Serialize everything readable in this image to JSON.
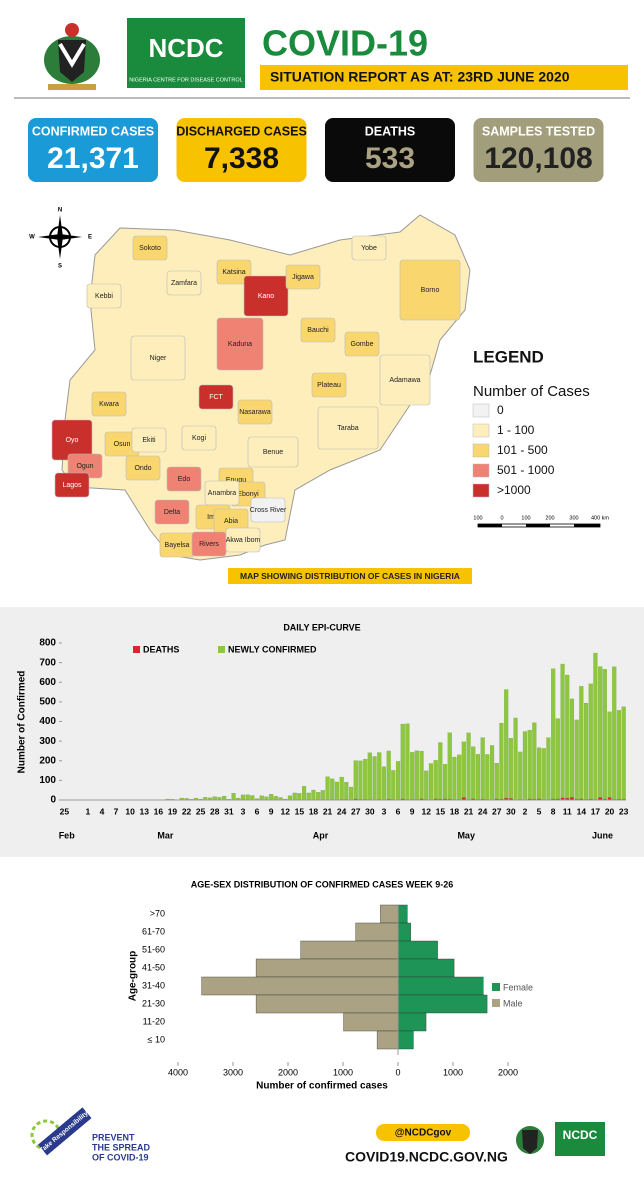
{
  "header": {
    "title": "COVID-19",
    "subtitle": "SITUATION REPORT AS AT: 23RD JUNE 2020",
    "logo": "NCDC",
    "logo_caption": "NIGERIA CENTRE FOR DISEASE CONTROL"
  },
  "stats": [
    {
      "label": "CONFIRMED CASES",
      "value": "21,371"
    },
    {
      "label": "DISCHARGED CASES",
      "value": "7,338"
    },
    {
      "label": "DEATHS",
      "value": "533"
    },
    {
      "label": "SAMPLES TESTED",
      "value": "120,108"
    }
  ],
  "map": {
    "compass": [
      "N",
      "S",
      "E",
      "W"
    ],
    "legend_title": "LEGEND",
    "legend_subtitle": "Number of Cases",
    "legend": [
      {
        "label": "0",
        "color": "#f2f2f2"
      },
      {
        "label": "1 - 100",
        "color": "#fdeebb"
      },
      {
        "label": "101 - 500",
        "color": "#f9d66e"
      },
      {
        "label": "501 - 1000",
        "color": "#ef8273"
      },
      {
        "label": ">1000",
        "color": "#c9302c"
      }
    ],
    "scale_labels": [
      "100",
      "0",
      "100",
      "200",
      "300",
      "400 km"
    ],
    "caption": "MAP SHOWING DISTRIBUTION OF CASES IN NIGERIA",
    "states": [
      {
        "name": "Sokoto",
        "class": 2
      },
      {
        "name": "Zamfara",
        "class": 1
      },
      {
        "name": "Kebbi",
        "class": 1
      },
      {
        "name": "Katsina",
        "class": 2
      },
      {
        "name": "Kano",
        "class": 4
      },
      {
        "name": "Jigawa",
        "class": 2
      },
      {
        "name": "Yobe",
        "class": 1
      },
      {
        "name": "Borno",
        "class": 2
      },
      {
        "name": "Bauchi",
        "class": 2
      },
      {
        "name": "Gombe",
        "class": 2
      },
      {
        "name": "Niger",
        "class": 1
      },
      {
        "name": "Kaduna",
        "class": 3
      },
      {
        "name": "Plateau",
        "class": 2
      },
      {
        "name": "Adamawa",
        "class": 1
      },
      {
        "name": "Kwara",
        "class": 2
      },
      {
        "name": "FCT",
        "class": 4
      },
      {
        "name": "Nasarawa",
        "class": 2
      },
      {
        "name": "Taraba",
        "class": 1
      },
      {
        "name": "Oyo",
        "class": 4
      },
      {
        "name": "Osun",
        "class": 2
      },
      {
        "name": "Ekiti",
        "class": 1
      },
      {
        "name": "Kogi",
        "class": 1
      },
      {
        "name": "Benue",
        "class": 1
      },
      {
        "name": "Ogun",
        "class": 3
      },
      {
        "name": "Ondo",
        "class": 2
      },
      {
        "name": "Edo",
        "class": 3
      },
      {
        "name": "Enugu",
        "class": 2
      },
      {
        "name": "Ebonyi",
        "class": 2
      },
      {
        "name": "Lagos",
        "class": 4
      },
      {
        "name": "Anambra",
        "class": 1
      },
      {
        "name": "Delta",
        "class": 3
      },
      {
        "name": "Imo",
        "class": 2
      },
      {
        "name": "Abia",
        "class": 2
      },
      {
        "name": "Cross River",
        "class": 0
      },
      {
        "name": "Bayelsa",
        "class": 2
      },
      {
        "name": "Rivers",
        "class": 3
      },
      {
        "name": "Akwa Ibom",
        "class": 1
      }
    ]
  },
  "chart_data": [
    {
      "type": "bar",
      "stacked": true,
      "title": "DAILY EPI-CURVE",
      "y_label": "Number of Confirmed",
      "categories": [
        "25",
        null,
        null,
        null,
        null,
        "1",
        null,
        null,
        "4",
        null,
        null,
        "7",
        null,
        null,
        "10",
        null,
        null,
        "13",
        null,
        null,
        "16",
        null,
        null,
        "19",
        null,
        null,
        "22",
        null,
        null,
        "25",
        null,
        null,
        "28",
        null,
        null,
        "31",
        null,
        null,
        "3",
        null,
        null,
        "6",
        null,
        null,
        "9",
        null,
        null,
        "12",
        null,
        null,
        "15",
        null,
        null,
        "18",
        null,
        null,
        "21",
        null,
        null,
        "24",
        null,
        null,
        "27",
        null,
        null,
        "30",
        null,
        null,
        "3",
        null,
        null,
        "6",
        null,
        null,
        "9",
        null,
        null,
        "12",
        null,
        null,
        "15",
        null,
        null,
        "18",
        null,
        null,
        "21",
        null,
        null,
        "24",
        null,
        null,
        "27",
        null,
        null,
        "30",
        null,
        null,
        "2",
        null,
        null,
        "5",
        null,
        null,
        "8",
        null,
        null,
        "11",
        null,
        null,
        "14",
        null,
        null,
        "17",
        null,
        null,
        "20",
        null,
        null,
        "23"
      ],
      "months": [
        "Feb",
        "Mar",
        "Apr",
        "May",
        "June"
      ],
      "series": [
        {
          "name": "DEATHS",
          "color": "#d7282f",
          "values": [
            0,
            0,
            0,
            0,
            0,
            0,
            0,
            0,
            0,
            0,
            0,
            0,
            0,
            0,
            0,
            0,
            0,
            0,
            0,
            0,
            0,
            0,
            0,
            0,
            0,
            0,
            1,
            0,
            0,
            0,
            0,
            0,
            1,
            0,
            0,
            0,
            0,
            0,
            0,
            2,
            1,
            1,
            0,
            1,
            0,
            2,
            0,
            0,
            2,
            1,
            0,
            1,
            1,
            0,
            2,
            1,
            2,
            0,
            1,
            3,
            4,
            2,
            6,
            4,
            4,
            3,
            2,
            4,
            0,
            5,
            3,
            2,
            6,
            3,
            4,
            3,
            7,
            3,
            2,
            7,
            5,
            6,
            5,
            3,
            4,
            13,
            3,
            7,
            4,
            5,
            3,
            2,
            6,
            5,
            10,
            8,
            2,
            4,
            1,
            6,
            5,
            7,
            3,
            3,
            6,
            6,
            12,
            10,
            14,
            5,
            7,
            4,
            5,
            4,
            13,
            5,
            13,
            4,
            5,
            5
          ]
        },
        {
          "name": "NEWLY CONFIRMED",
          "color": "#8dc63f",
          "values": [
            0,
            0,
            1,
            0,
            0,
            0,
            0,
            0,
            0,
            0,
            0,
            0,
            1,
            0,
            0,
            0,
            0,
            0,
            0,
            0,
            0,
            1,
            5,
            4,
            0,
            10,
            8,
            4,
            10,
            5,
            14,
            11,
            16,
            14,
            20,
            4,
            35,
            10,
            26,
            25,
            22,
            6,
            22,
            16,
            30,
            17,
            13,
            5,
            20,
            35,
            34,
            69,
            35,
            51,
            38,
            48,
            117,
            108,
            91,
            114,
            87,
            64,
            195,
            196,
            204,
            238,
            220,
            238,
            170,
            245,
            148,
            195,
            381,
            386,
            239,
            248,
            242,
            146,
            184,
            195,
            288,
            176,
            338,
            216,
            226,
            284,
            339,
            265,
            229,
            313,
            229,
            276,
            182,
            387,
            553,
            307,
            416,
            241,
            348,
            350,
            389,
            260,
            260,
            315,
            663,
            409,
            681,
            627,
            501,
            403,
            573,
            490,
            587,
            745,
            667,
            661,
            436,
            675,
            452,
            470
          ]
        }
      ],
      "ylim": [
        0,
        800
      ],
      "yticks": [
        0,
        100,
        200,
        300,
        400,
        500,
        600,
        700,
        800
      ]
    },
    {
      "type": "pyramid",
      "title": "AGE-SEX DISTRIBUTION OF CONFIRMED CASES WEEK 9-26",
      "x_label": "Number of confirmed cases",
      "y_label": "Age-group",
      "categories": [
        ">70",
        "61-70",
        "51-60",
        "41-50",
        "31-40",
        "21-30",
        "11-20",
        "≤ 10"
      ],
      "series": [
        {
          "name": "Female",
          "color": "#1e9457",
          "side": "right",
          "values": [
            170,
            230,
            720,
            1020,
            1550,
            1620,
            510,
            280
          ]
        },
        {
          "name": "Male",
          "color": "#aaa283",
          "side": "left",
          "values": [
            320,
            770,
            1770,
            2580,
            3570,
            2580,
            990,
            380
          ]
        }
      ],
      "xlim": [
        -4200,
        2400
      ],
      "xticks": [
        {
          "value": -4000,
          "label": "4000"
        },
        {
          "value": -3000,
          "label": "3000"
        },
        {
          "value": -2000,
          "label": "2000"
        },
        {
          "value": -1000,
          "label": "1000"
        },
        0,
        1000,
        2000
      ]
    }
  ],
  "footer": {
    "badge": "Take Responsibility",
    "slogan": [
      "PREVENT",
      "THE SPREAD",
      "OF COVID-19"
    ],
    "handle": "@NCDCgov",
    "website": "COVID19.NCDC.GOV.NG"
  }
}
